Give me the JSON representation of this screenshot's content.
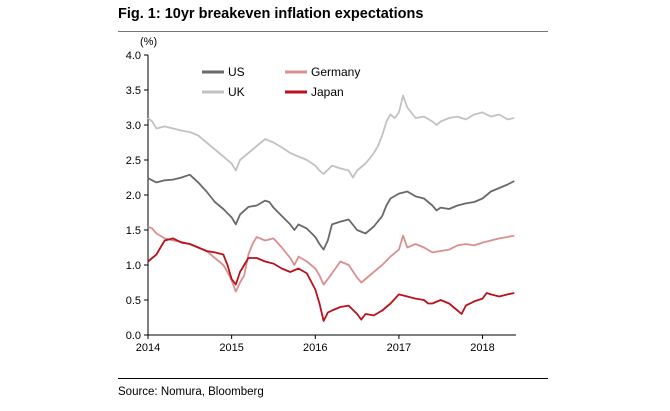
{
  "title": "Fig. 1: 10yr breakeven inflation expectations",
  "source": "Source: Nomura, Bloomberg",
  "colors": {
    "US": "#696969",
    "Germany": "#db8f90",
    "UK": "#c2c2c2",
    "Japan": "#b8121b"
  },
  "chart_data": {
    "type": "line",
    "title": "",
    "ylabel": "(%)",
    "xlabel": "",
    "xlim": [
      2014.0,
      2018.4
    ],
    "ylim": [
      0.0,
      4.0
    ],
    "xticks": [
      "2014",
      "2015",
      "2016",
      "2017",
      "2018"
    ],
    "yticks": [
      "0.0",
      "0.5",
      "1.0",
      "1.5",
      "2.0",
      "2.5",
      "3.0",
      "3.5",
      "4.0"
    ],
    "grid": false,
    "legend": "top-left",
    "series": [
      {
        "name": "US",
        "points": [
          [
            2014.0,
            2.24
          ],
          [
            2014.1,
            2.18
          ],
          [
            2014.2,
            2.21
          ],
          [
            2014.3,
            2.22
          ],
          [
            2014.4,
            2.25
          ],
          [
            2014.5,
            2.29
          ],
          [
            2014.6,
            2.18
          ],
          [
            2014.7,
            2.05
          ],
          [
            2014.8,
            1.9
          ],
          [
            2014.9,
            1.8
          ],
          [
            2015.0,
            1.68
          ],
          [
            2015.05,
            1.58
          ],
          [
            2015.1,
            1.72
          ],
          [
            2015.2,
            1.83
          ],
          [
            2015.3,
            1.85
          ],
          [
            2015.4,
            1.92
          ],
          [
            2015.45,
            1.9
          ],
          [
            2015.5,
            1.82
          ],
          [
            2015.6,
            1.7
          ],
          [
            2015.7,
            1.58
          ],
          [
            2015.75,
            1.5
          ],
          [
            2015.8,
            1.58
          ],
          [
            2015.9,
            1.52
          ],
          [
            2016.0,
            1.4
          ],
          [
            2016.05,
            1.3
          ],
          [
            2016.1,
            1.22
          ],
          [
            2016.15,
            1.35
          ],
          [
            2016.2,
            1.58
          ],
          [
            2016.3,
            1.62
          ],
          [
            2016.4,
            1.65
          ],
          [
            2016.5,
            1.5
          ],
          [
            2016.6,
            1.45
          ],
          [
            2016.7,
            1.55
          ],
          [
            2016.8,
            1.7
          ],
          [
            2016.85,
            1.85
          ],
          [
            2016.9,
            1.95
          ],
          [
            2017.0,
            2.02
          ],
          [
            2017.1,
            2.05
          ],
          [
            2017.2,
            1.98
          ],
          [
            2017.3,
            1.95
          ],
          [
            2017.4,
            1.85
          ],
          [
            2017.45,
            1.78
          ],
          [
            2017.5,
            1.82
          ],
          [
            2017.6,
            1.8
          ],
          [
            2017.7,
            1.85
          ],
          [
            2017.8,
            1.88
          ],
          [
            2017.9,
            1.9
          ],
          [
            2018.0,
            1.95
          ],
          [
            2018.1,
            2.05
          ],
          [
            2018.2,
            2.1
          ],
          [
            2018.3,
            2.15
          ],
          [
            2018.38,
            2.2
          ]
        ]
      },
      {
        "name": "Germany",
        "points": [
          [
            2014.0,
            1.55
          ],
          [
            2014.05,
            1.52
          ],
          [
            2014.1,
            1.45
          ],
          [
            2014.2,
            1.38
          ],
          [
            2014.3,
            1.35
          ],
          [
            2014.4,
            1.33
          ],
          [
            2014.5,
            1.3
          ],
          [
            2014.6,
            1.25
          ],
          [
            2014.7,
            1.2
          ],
          [
            2014.8,
            1.1
          ],
          [
            2014.9,
            1.0
          ],
          [
            2014.95,
            0.9
          ],
          [
            2015.0,
            0.78
          ],
          [
            2015.05,
            0.62
          ],
          [
            2015.1,
            0.75
          ],
          [
            2015.15,
            0.85
          ],
          [
            2015.2,
            1.15
          ],
          [
            2015.25,
            1.3
          ],
          [
            2015.3,
            1.4
          ],
          [
            2015.4,
            1.35
          ],
          [
            2015.5,
            1.38
          ],
          [
            2015.6,
            1.25
          ],
          [
            2015.7,
            1.1
          ],
          [
            2015.75,
            1.0
          ],
          [
            2015.8,
            1.12
          ],
          [
            2015.9,
            1.05
          ],
          [
            2016.0,
            0.95
          ],
          [
            2016.05,
            0.85
          ],
          [
            2016.1,
            0.72
          ],
          [
            2016.2,
            0.88
          ],
          [
            2016.3,
            1.05
          ],
          [
            2016.4,
            1.0
          ],
          [
            2016.5,
            0.82
          ],
          [
            2016.55,
            0.75
          ],
          [
            2016.6,
            0.8
          ],
          [
            2016.7,
            0.9
          ],
          [
            2016.8,
            1.0
          ],
          [
            2016.9,
            1.12
          ],
          [
            2017.0,
            1.22
          ],
          [
            2017.05,
            1.42
          ],
          [
            2017.1,
            1.25
          ],
          [
            2017.2,
            1.3
          ],
          [
            2017.3,
            1.25
          ],
          [
            2017.4,
            1.18
          ],
          [
            2017.5,
            1.2
          ],
          [
            2017.6,
            1.22
          ],
          [
            2017.7,
            1.28
          ],
          [
            2017.8,
            1.3
          ],
          [
            2017.9,
            1.28
          ],
          [
            2018.0,
            1.32
          ],
          [
            2018.1,
            1.35
          ],
          [
            2018.2,
            1.38
          ],
          [
            2018.3,
            1.4
          ],
          [
            2018.38,
            1.42
          ]
        ]
      },
      {
        "name": "UK",
        "points": [
          [
            2014.0,
            3.1
          ],
          [
            2014.05,
            3.05
          ],
          [
            2014.1,
            2.95
          ],
          [
            2014.2,
            2.98
          ],
          [
            2014.3,
            2.95
          ],
          [
            2014.4,
            2.92
          ],
          [
            2014.5,
            2.9
          ],
          [
            2014.6,
            2.85
          ],
          [
            2014.7,
            2.75
          ],
          [
            2014.8,
            2.65
          ],
          [
            2014.9,
            2.55
          ],
          [
            2015.0,
            2.45
          ],
          [
            2015.05,
            2.35
          ],
          [
            2015.1,
            2.5
          ],
          [
            2015.2,
            2.6
          ],
          [
            2015.3,
            2.7
          ],
          [
            2015.4,
            2.8
          ],
          [
            2015.5,
            2.75
          ],
          [
            2015.6,
            2.68
          ],
          [
            2015.7,
            2.6
          ],
          [
            2015.8,
            2.55
          ],
          [
            2015.9,
            2.5
          ],
          [
            2016.0,
            2.42
          ],
          [
            2016.05,
            2.35
          ],
          [
            2016.1,
            2.3
          ],
          [
            2016.2,
            2.42
          ],
          [
            2016.3,
            2.38
          ],
          [
            2016.4,
            2.35
          ],
          [
            2016.45,
            2.25
          ],
          [
            2016.5,
            2.35
          ],
          [
            2016.6,
            2.45
          ],
          [
            2016.65,
            2.52
          ],
          [
            2016.7,
            2.6
          ],
          [
            2016.75,
            2.7
          ],
          [
            2016.8,
            2.85
          ],
          [
            2016.85,
            3.05
          ],
          [
            2016.9,
            3.15
          ],
          [
            2016.95,
            3.1
          ],
          [
            2017.0,
            3.18
          ],
          [
            2017.05,
            3.42
          ],
          [
            2017.1,
            3.25
          ],
          [
            2017.2,
            3.1
          ],
          [
            2017.3,
            3.12
          ],
          [
            2017.4,
            3.05
          ],
          [
            2017.45,
            3.0
          ],
          [
            2017.5,
            3.05
          ],
          [
            2017.6,
            3.1
          ],
          [
            2017.7,
            3.12
          ],
          [
            2017.8,
            3.08
          ],
          [
            2017.9,
            3.15
          ],
          [
            2018.0,
            3.18
          ],
          [
            2018.1,
            3.12
          ],
          [
            2018.2,
            3.15
          ],
          [
            2018.3,
            3.08
          ],
          [
            2018.38,
            3.1
          ]
        ]
      },
      {
        "name": "Japan",
        "points": [
          [
            2014.0,
            1.05
          ],
          [
            2014.05,
            1.1
          ],
          [
            2014.1,
            1.15
          ],
          [
            2014.15,
            1.25
          ],
          [
            2014.2,
            1.35
          ],
          [
            2014.3,
            1.38
          ],
          [
            2014.4,
            1.32
          ],
          [
            2014.5,
            1.3
          ],
          [
            2014.6,
            1.25
          ],
          [
            2014.7,
            1.2
          ],
          [
            2014.8,
            1.18
          ],
          [
            2014.9,
            1.15
          ],
          [
            2014.95,
            1.0
          ],
          [
            2015.0,
            0.8
          ],
          [
            2015.05,
            0.72
          ],
          [
            2015.1,
            0.9
          ],
          [
            2015.15,
            1.0
          ],
          [
            2015.2,
            1.1
          ],
          [
            2015.3,
            1.1
          ],
          [
            2015.4,
            1.05
          ],
          [
            2015.5,
            1.02
          ],
          [
            2015.6,
            0.95
          ],
          [
            2015.7,
            0.9
          ],
          [
            2015.8,
            0.95
          ],
          [
            2015.9,
            0.88
          ],
          [
            2016.0,
            0.65
          ],
          [
            2016.05,
            0.45
          ],
          [
            2016.1,
            0.2
          ],
          [
            2016.15,
            0.32
          ],
          [
            2016.2,
            0.35
          ],
          [
            2016.3,
            0.4
          ],
          [
            2016.4,
            0.42
          ],
          [
            2016.5,
            0.3
          ],
          [
            2016.55,
            0.22
          ],
          [
            2016.6,
            0.3
          ],
          [
            2016.7,
            0.28
          ],
          [
            2016.8,
            0.35
          ],
          [
            2016.9,
            0.45
          ],
          [
            2017.0,
            0.58
          ],
          [
            2017.1,
            0.55
          ],
          [
            2017.2,
            0.52
          ],
          [
            2017.3,
            0.5
          ],
          [
            2017.35,
            0.45
          ],
          [
            2017.4,
            0.45
          ],
          [
            2017.5,
            0.5
          ],
          [
            2017.6,
            0.45
          ],
          [
            2017.7,
            0.35
          ],
          [
            2017.75,
            0.3
          ],
          [
            2017.8,
            0.42
          ],
          [
            2017.9,
            0.48
          ],
          [
            2018.0,
            0.52
          ],
          [
            2018.05,
            0.6
          ],
          [
            2018.1,
            0.58
          ],
          [
            2018.2,
            0.55
          ],
          [
            2018.3,
            0.58
          ],
          [
            2018.38,
            0.6
          ]
        ]
      }
    ]
  }
}
